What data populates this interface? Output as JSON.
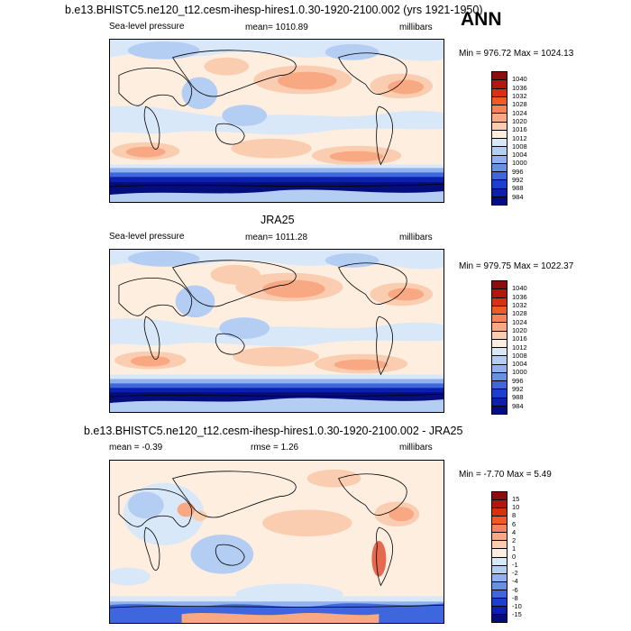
{
  "season": "ANN",
  "panels": [
    {
      "title": "b.e13.BHISTC5.ne120_t12.cesm-ihesp-hires1.0.30-1920-2100.002 (yrs 1921-1950)",
      "left_label": "Sea-level pressure",
      "center_label": "mean= 1010.89",
      "right_label": "millibars",
      "minmax": "Min = 976.72 Max = 1024.13",
      "colorbar": {
        "labels": [
          "1040",
          "1036",
          "1032",
          "1028",
          "1024",
          "1020",
          "1016",
          "1012",
          "1008",
          "1004",
          "1000",
          "996",
          "992",
          "988",
          "984"
        ],
        "colors": [
          "#8c0d0d",
          "#b0170f",
          "#d8310f",
          "#f05a23",
          "#f5825a",
          "#f8a882",
          "#fbcdb0",
          "#fdeee0",
          "#d9e8f8",
          "#b4cdf3",
          "#90b1ee",
          "#6b8fe6",
          "#3f67dd",
          "#1d3fd0",
          "#0b21ae",
          "#050d7c"
        ]
      }
    },
    {
      "title": "JRA25",
      "left_label": "Sea-level pressure",
      "center_label": "mean= 1011.28",
      "right_label": "millibars",
      "minmax": "Min = 979.75 Max = 1022.37",
      "colorbar": {
        "labels": [
          "1040",
          "1036",
          "1032",
          "1028",
          "1024",
          "1020",
          "1016",
          "1012",
          "1008",
          "1004",
          "1000",
          "996",
          "992",
          "988",
          "984"
        ],
        "colors": [
          "#8c0d0d",
          "#b0170f",
          "#d8310f",
          "#f05a23",
          "#f5825a",
          "#f8a882",
          "#fbcdb0",
          "#fdeee0",
          "#d9e8f8",
          "#b4cdf3",
          "#90b1ee",
          "#6b8fe6",
          "#3f67dd",
          "#1d3fd0",
          "#0b21ae",
          "#050d7c"
        ]
      }
    },
    {
      "title": "b.e13.BHISTC5.ne120_t12.cesm-ihesp-hires1.0.30-1920-2100.002 - JRA25",
      "left_label": "mean =  -0.39",
      "center_label": "rmse =   1.26",
      "right_label": "millibars",
      "minmax": "Min =  -7.70 Max =   5.49",
      "colorbar": {
        "labels": [
          "15",
          "10",
          "8",
          "6",
          "4",
          "2",
          "1",
          "0",
          "-1",
          "-2",
          "-4",
          "-6",
          "-8",
          "-10",
          "-15"
        ],
        "colors": [
          "#8c0d0d",
          "#b0170f",
          "#d8310f",
          "#f05a23",
          "#f5825a",
          "#f8a882",
          "#fbcdb0",
          "#fdeee0",
          "#d9e8f8",
          "#b4cdf3",
          "#90b1ee",
          "#6b8fe6",
          "#3f67dd",
          "#1d3fd0",
          "#0b21ae",
          "#050d7c"
        ]
      }
    }
  ],
  "palette": {
    "ocean_bg": "#fdeee0",
    "high": "#f8a882",
    "high_light": "#fbcdb0",
    "low_light": "#d9e8f8",
    "low_mid": "#b4cdf3",
    "low_deep1": "#3f67dd",
    "low_deep2": "#0b21ae",
    "low_deep3": "#050d7c"
  }
}
